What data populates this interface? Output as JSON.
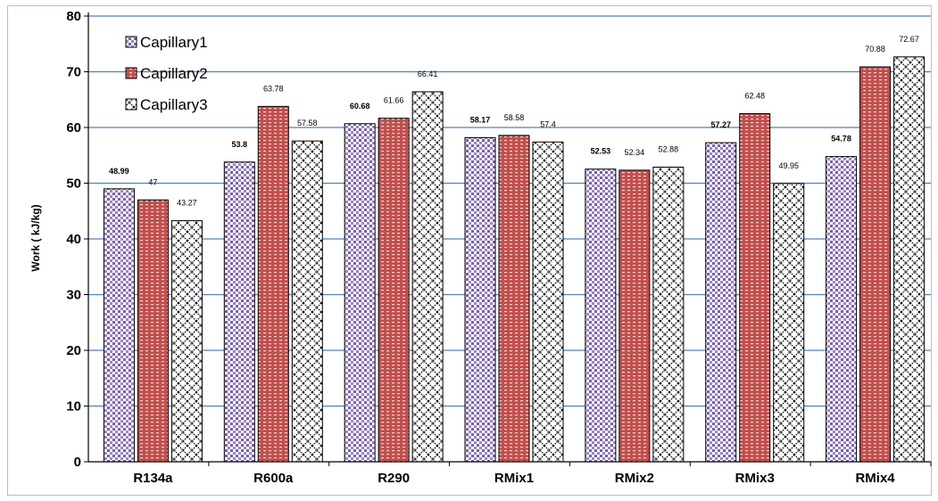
{
  "chart_data": {
    "type": "bar",
    "title": "",
    "xlabel": "",
    "ylabel": "Work ( kJ/kg)",
    "ylim": [
      0,
      80
    ],
    "yticks": [
      "0",
      "10",
      "20",
      "30",
      "40",
      "50",
      "60",
      "70",
      "80"
    ],
    "grid": true,
    "legend_position": "top-left",
    "categories": [
      "R134a",
      "R600a",
      "R290",
      "RMix1",
      "RMix2",
      "RMix3",
      "RMix4"
    ],
    "series": [
      {
        "name": "Capillary1",
        "values": [
          48.99,
          53.8,
          60.68,
          58.17,
          52.53,
          57.27,
          54.78
        ],
        "labels": [
          "48.99",
          "53.8",
          "60.68",
          "58.17",
          "52.53",
          "57.27",
          "54.78"
        ],
        "color": "#7b5ea7"
      },
      {
        "name": "Capillary2",
        "values": [
          47,
          63.78,
          61.66,
          58.58,
          52.34,
          62.48,
          70.88
        ],
        "labels": [
          "47",
          "63.78",
          "61.66",
          "58.58",
          "52.34",
          "62.48",
          "70.88"
        ],
        "color": "#c0504d"
      },
      {
        "name": "Capillary3",
        "values": [
          43.27,
          57.58,
          66.41,
          57.4,
          52.88,
          49.95,
          72.67
        ],
        "labels": [
          "43.27",
          "57.58",
          "66.41",
          "57.4",
          "52.88",
          "49.95",
          "72.67"
        ],
        "color": "#000000"
      }
    ],
    "gridline_color": "#4f81bd"
  }
}
